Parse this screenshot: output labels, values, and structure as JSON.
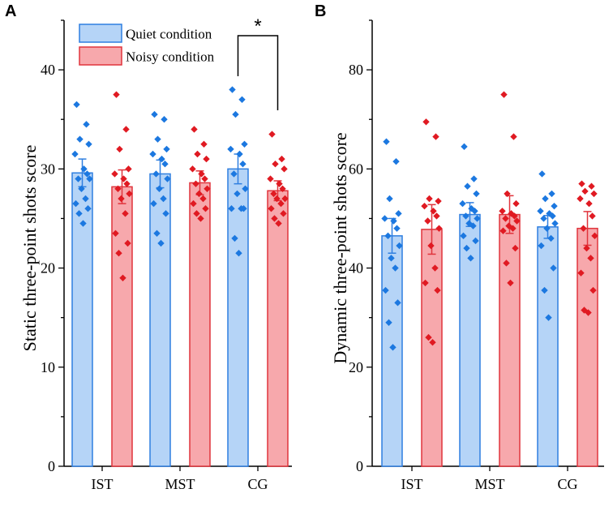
{
  "chart_data": [
    {
      "type": "bar",
      "panel": "A",
      "title": "",
      "xlabel": "",
      "ylabel": "Static three-point shots score",
      "ylim": [
        0,
        45
      ],
      "yticks": [
        0,
        10,
        20,
        30,
        40
      ],
      "categories": [
        "IST",
        "MST",
        "CG"
      ],
      "series": [
        {
          "name": "Quiet condition",
          "fill": "#b5d4f7",
          "stroke": "#2f7fe0",
          "dot": "#1c78e0",
          "values": [
            29.6,
            29.5,
            30.0
          ],
          "errors": [
            1.4,
            1.4,
            1.5
          ],
          "points": [
            [
              36.5,
              34.5,
              33.0,
              32.5,
              31.5,
              30.0,
              29.5,
              29.0,
              29.0,
              28.0,
              27.0,
              26.5,
              26.0,
              25.5,
              24.5
            ],
            [
              35.5,
              35.0,
              33.0,
              32.0,
              31.5,
              31.0,
              30.5,
              29.5,
              29.0,
              28.0,
              27.0,
              26.5,
              25.5,
              23.5,
              22.5
            ],
            [
              38.0,
              37.0,
              35.5,
              32.5,
              32.0,
              31.5,
              30.5,
              29.5,
              28.0,
              27.5,
              26.0,
              26.0,
              26.0,
              23.0,
              21.5
            ]
          ]
        },
        {
          "name": "Noisy condition",
          "fill": "#f7a8ac",
          "stroke": "#e0343c",
          "dot": "#e01a22",
          "values": [
            28.2,
            28.6,
            27.8
          ],
          "errors": [
            1.7,
            1.2,
            1.0
          ],
          "points": [
            [
              37.5,
              34.0,
              32.0,
              30.0,
              29.5,
              29.0,
              28.5,
              28.0,
              27.5,
              27.0,
              25.5,
              23.5,
              22.5,
              21.5,
              19.0
            ],
            [
              34.0,
              32.5,
              31.5,
              31.0,
              30.0,
              29.5,
              29.0,
              28.5,
              28.0,
              27.5,
              27.0,
              26.5,
              26.0,
              25.5,
              25.0
            ],
            [
              33.5,
              31.0,
              30.5,
              30.0,
              29.0,
              28.5,
              28.0,
              27.5,
              27.0,
              27.0,
              26.5,
              26.0,
              25.5,
              25.0,
              24.5
            ]
          ]
        }
      ],
      "annotations": [
        {
          "text": "*",
          "between": [
            "Quiet condition",
            "Noisy condition"
          ],
          "category": "CG"
        }
      ],
      "legend": {
        "position": "top-left",
        "entries": [
          "Quiet condition",
          "Noisy condition"
        ]
      }
    },
    {
      "type": "bar",
      "panel": "B",
      "title": "",
      "xlabel": "",
      "ylabel": "Dynamic three-point shots score",
      "ylim": [
        0,
        90
      ],
      "yticks": [
        0,
        20,
        40,
        60,
        80
      ],
      "categories": [
        "IST",
        "MST",
        "CG"
      ],
      "series": [
        {
          "name": "Quiet condition",
          "fill": "#b5d4f7",
          "stroke": "#2f7fe0",
          "dot": "#1c78e0",
          "values": [
            46.5,
            50.8,
            48.3
          ],
          "errors": [
            3.5,
            2.4,
            2.3
          ],
          "points": [
            [
              65.5,
              61.5,
              54.0,
              51.0,
              50.0,
              49.5,
              48.0,
              46.5,
              44.5,
              42.0,
              40.0,
              35.5,
              33.0,
              29.0,
              24.0
            ],
            [
              64.5,
              58.0,
              56.5,
              55.0,
              53.0,
              52.0,
              51.5,
              50.5,
              50.0,
              49.0,
              48.5,
              46.5,
              45.5,
              44.0,
              42.0
            ],
            [
              59.0,
              55.0,
              54.0,
              52.5,
              51.5,
              51.0,
              50.5,
              50.0,
              49.0,
              48.0,
              46.0,
              44.5,
              40.0,
              35.5,
              30.0
            ]
          ]
        },
        {
          "name": "Noisy condition",
          "fill": "#f7a8ac",
          "stroke": "#e0343c",
          "dot": "#e01a22",
          "values": [
            47.8,
            50.8,
            48.0
          ],
          "errors": [
            5.0,
            3.8,
            3.4
          ],
          "points": [
            [
              69.5,
              66.5,
              54.0,
              53.5,
              52.5,
              51.5,
              50.5,
              49.5,
              48.0,
              44.5,
              40.0,
              37.0,
              35.5,
              26.0,
              25.0
            ],
            [
              75.0,
              66.5,
              55.0,
              53.0,
              51.5,
              51.0,
              50.5,
              50.0,
              49.5,
              48.5,
              48.0,
              47.5,
              44.0,
              41.0,
              37.0
            ],
            [
              57.0,
              56.5,
              55.5,
              55.0,
              54.0,
              53.0,
              50.5,
              48.0,
              46.5,
              44.0,
              42.0,
              39.0,
              35.5,
              31.5,
              31.0
            ]
          ]
        }
      ],
      "legend": {
        "position": "none",
        "entries": []
      }
    }
  ]
}
